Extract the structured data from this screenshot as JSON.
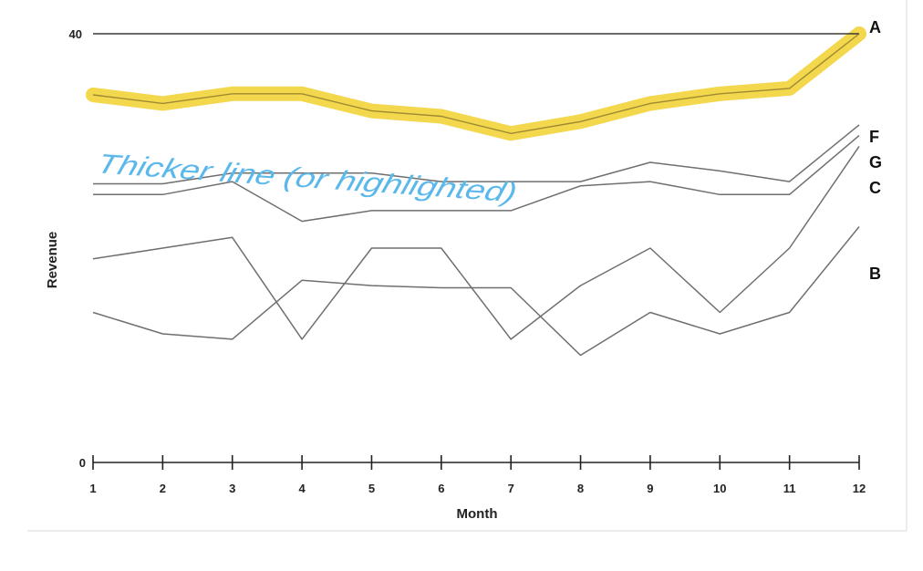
{
  "chart_data": {
    "type": "line",
    "xlabel": "Month",
    "ylabel": "Revenue",
    "x": [
      1,
      2,
      3,
      4,
      5,
      6,
      7,
      8,
      9,
      10,
      11,
      12
    ],
    "ylim": [
      0,
      40
    ],
    "y_ticks": [
      "0",
      "40"
    ],
    "x_ticks": [
      "1",
      "2",
      "3",
      "4",
      "5",
      "6",
      "7",
      "8",
      "9",
      "10",
      "11",
      "12"
    ],
    "grid": false,
    "highlight_color": "#f2d33a",
    "line_color": "#6f6f6f",
    "series": [
      {
        "name": "A",
        "values": [
          40,
          40,
          40,
          40,
          40,
          40,
          40,
          40,
          40,
          40,
          40,
          40
        ]
      },
      {
        "name": "",
        "highlighted": true,
        "values": [
          34.3,
          33.5,
          34.4,
          34.4,
          32.8,
          32.3,
          30.7,
          31.8,
          33.5,
          34.4,
          34.9,
          40
        ]
      },
      {
        "name": "F",
        "values": [
          26,
          26,
          27,
          27,
          27,
          26.2,
          26.2,
          26.2,
          28,
          27.2,
          26.2,
          31.5
        ]
      },
      {
        "name": "G",
        "values": [
          25,
          25,
          26.2,
          22.5,
          23.5,
          23.5,
          23.5,
          25.8,
          26.2,
          25,
          25,
          30.5
        ]
      },
      {
        "name": "C",
        "values": [
          19,
          20,
          21,
          11.5,
          20,
          20,
          11.5,
          16.5,
          20,
          14,
          20,
          29.5
        ]
      },
      {
        "name": "B",
        "values": [
          14,
          12,
          11.5,
          17,
          16.5,
          16.3,
          16.3,
          10,
          14,
          12,
          14,
          22
        ]
      }
    ],
    "annotation": {
      "text": "Thicker line (or highlighted)",
      "color": "#5bb8ea"
    }
  }
}
